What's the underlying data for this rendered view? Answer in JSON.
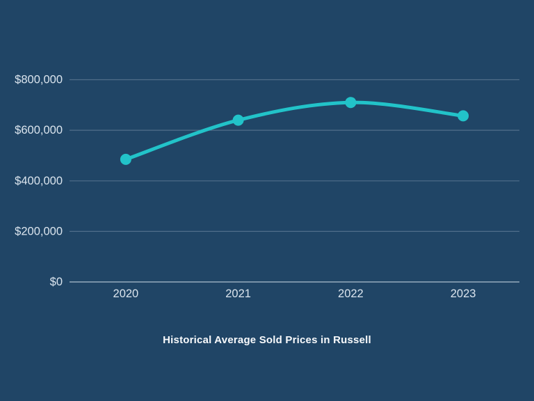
{
  "page": {
    "background_color": "#204566"
  },
  "chart_data": {
    "type": "line",
    "title": "Historical Average Sold Prices in Russell",
    "categories": [
      "2020",
      "2021",
      "2022",
      "2023"
    ],
    "values": [
      485000,
      640000,
      710000,
      657000
    ],
    "xlabel": "",
    "ylabel": "",
    "ylim": [
      0,
      800000
    ],
    "y_ticks": [
      0,
      200000,
      400000,
      600000,
      800000
    ],
    "y_tick_labels": [
      "$0",
      "$200,000",
      "$400,000",
      "$600,000",
      "$800,000"
    ],
    "grid": true,
    "legend": false,
    "smooth": true,
    "line_color": "#22c3c9",
    "marker_color": "#22c3c9",
    "gridline_color": "rgba(205,220,235,0.28)",
    "axis_line_color": "rgba(215,228,240,0.65)",
    "tick_label_color": "#dbe5ee",
    "title_color": "#f8fafc"
  }
}
